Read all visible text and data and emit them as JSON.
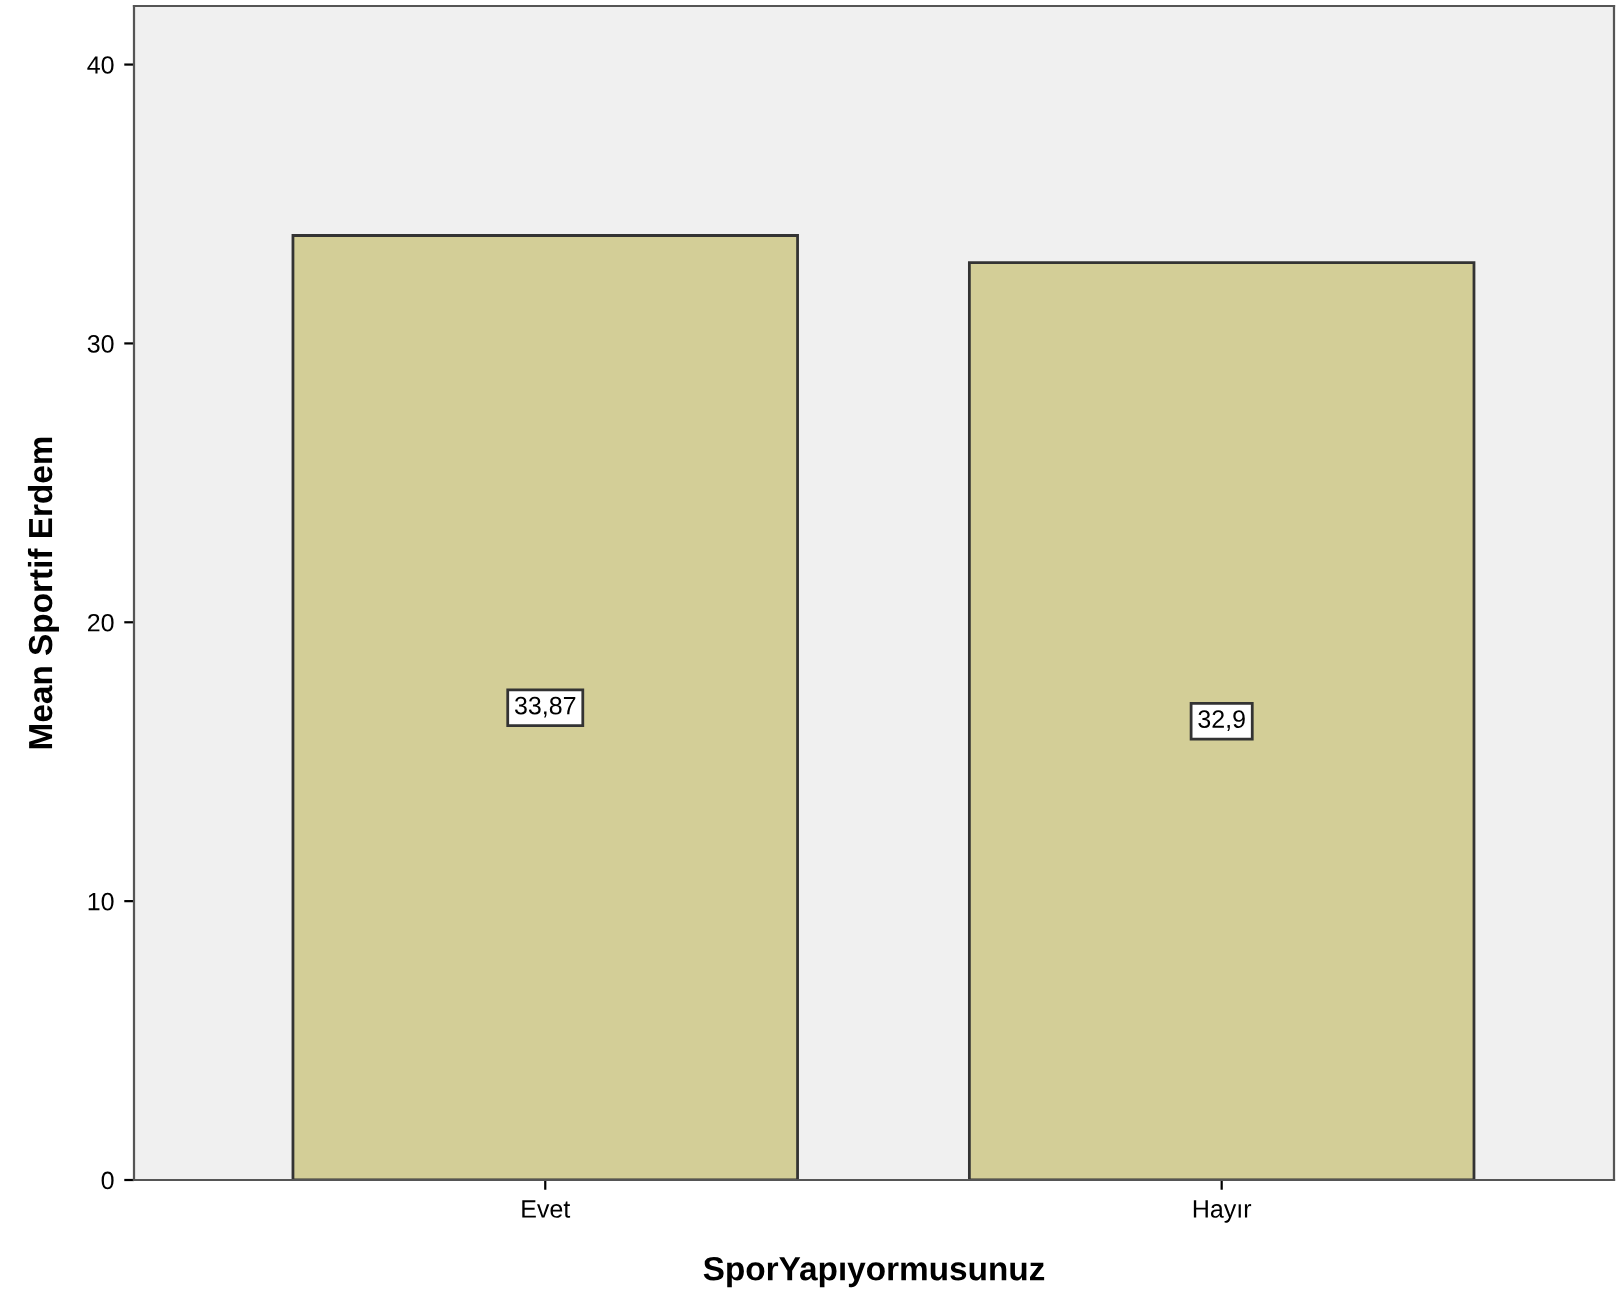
{
  "chart_data": {
    "type": "bar",
    "xlabel": "SporYapıyormusunuz",
    "ylabel": "Mean Sportif Erdem",
    "categories": [
      "Evet",
      "Hayır"
    ],
    "values": [
      33.87,
      32.9
    ],
    "value_labels": [
      "33,87",
      "32,9"
    ],
    "color": "#d3ce97",
    "ylim": [
      0,
      42.1
    ],
    "yticks": [
      0,
      10,
      20,
      30,
      40
    ],
    "grid": false
  }
}
